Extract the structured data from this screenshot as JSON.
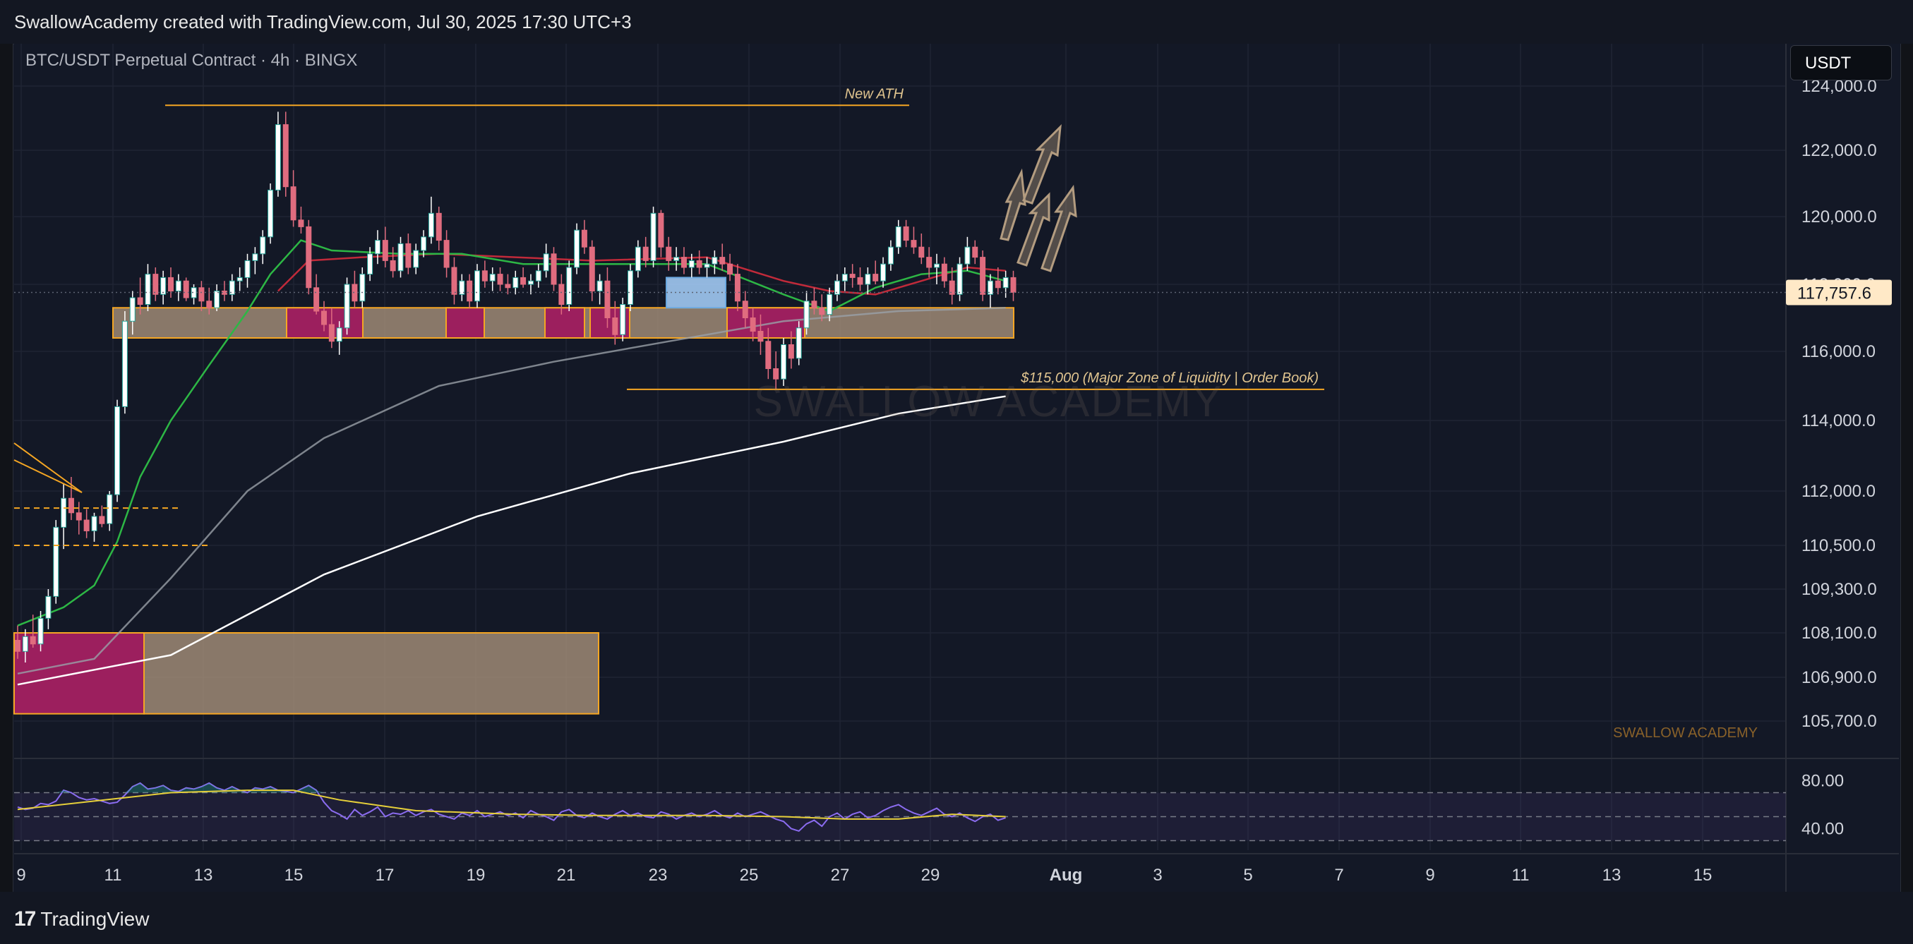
{
  "header": {
    "credit": "SwallowAcademy created with TradingView.com, Jul 30, 2025 17:30 UTC+3",
    "symbol_title": "BTC/USDT Perpetual Contract · 4h · BINGX",
    "currency_button": "USDT"
  },
  "footer": {
    "logo_text": "TradingView",
    "logo_icon": "tradingview-logo-icon"
  },
  "colors": {
    "background": "#131826",
    "up_candle": "#ffffff",
    "down_candle": "#e06c7f",
    "zone_fill": "#a8917a",
    "zone_border": "#f5a623",
    "demand_block": "#9c1f5e",
    "ema_fast": "#2db745",
    "ema_mid": "#c12a3a",
    "ma_100": "#9aa0a8",
    "ma_200": "#ffffff",
    "rsi_line": "#8b6cf0",
    "rsi_signal": "#e6cf3a",
    "price_label_bg": "#ffe9c7"
  },
  "chart_data": {
    "type": "candlestick",
    "symbol": "BTC/USDT Perpetual Contract",
    "timeframe": "4h",
    "exchange": "BINGX",
    "current_price": "117,757.6",
    "y_ticks": [
      "124,000.0",
      "122,000.0",
      "120,000.0",
      "118,000.0",
      "116,000.0",
      "114,000.0",
      "112,000.0",
      "110,500.0",
      "109,300.0",
      "108,100.0",
      "106,900.0",
      "105,700.0"
    ],
    "x_ticks": [
      "9",
      "11",
      "13",
      "15",
      "17",
      "19",
      "21",
      "23",
      "25",
      "27",
      "29",
      "Aug",
      "3",
      "5",
      "7",
      "9",
      "11",
      "13",
      "15"
    ],
    "candles": [
      [
        107900,
        108300,
        107400,
        107600
      ],
      [
        107600,
        108200,
        107300,
        108000
      ],
      [
        108000,
        108600,
        107700,
        107800
      ],
      [
        107800,
        108700,
        107600,
        108500
      ],
      [
        108500,
        109300,
        108200,
        109100
      ],
      [
        109100,
        111200,
        108900,
        111000
      ],
      [
        111000,
        112200,
        110400,
        111800
      ],
      [
        111800,
        112400,
        111200,
        111400
      ],
      [
        111400,
        111700,
        110800,
        111200
      ],
      [
        111200,
        111500,
        110700,
        110900
      ],
      [
        110900,
        111400,
        110600,
        111300
      ],
      [
        111300,
        111600,
        111000,
        111100
      ],
      [
        111100,
        112000,
        110900,
        111900
      ],
      [
        111900,
        114600,
        111700,
        114400
      ],
      [
        114400,
        117200,
        114200,
        116900
      ],
      [
        116900,
        117800,
        116500,
        117600
      ],
      [
        117600,
        118200,
        117100,
        117400
      ],
      [
        117400,
        118600,
        117200,
        118300
      ],
      [
        118300,
        118500,
        117500,
        117700
      ],
      [
        117700,
        118400,
        117400,
        118200
      ],
      [
        118200,
        118500,
        117600,
        117800
      ],
      [
        117800,
        118300,
        117500,
        118100
      ],
      [
        118100,
        118200,
        117500,
        117600
      ],
      [
        117600,
        118000,
        117400,
        117900
      ],
      [
        117900,
        118100,
        117200,
        117500
      ],
      [
        117500,
        117900,
        117100,
        117300
      ],
      [
        117300,
        118000,
        117200,
        117800
      ],
      [
        117800,
        118100,
        117500,
        117700
      ],
      [
        117700,
        118300,
        117500,
        118100
      ],
      [
        118100,
        118500,
        117800,
        118200
      ],
      [
        118200,
        118900,
        117900,
        118700
      ],
      [
        118700,
        119100,
        118300,
        118900
      ],
      [
        118900,
        119600,
        118600,
        119400
      ],
      [
        119400,
        121000,
        119200,
        120800
      ],
      [
        120800,
        123200,
        120600,
        122800
      ],
      [
        122800,
        123200,
        120600,
        120900
      ],
      [
        120900,
        121400,
        119700,
        119900
      ],
      [
        119900,
        120300,
        119500,
        119700
      ],
      [
        119700,
        119900,
        117700,
        117900
      ],
      [
        117900,
        118300,
        117100,
        117200
      ],
      [
        117200,
        117500,
        116600,
        116800
      ],
      [
        116800,
        117300,
        116100,
        116300
      ],
      [
        116300,
        116900,
        115900,
        116700
      ],
      [
        116700,
        118200,
        116500,
        118000
      ],
      [
        118000,
        118400,
        117300,
        117500
      ],
      [
        117500,
        118500,
        117300,
        118300
      ],
      [
        118300,
        119100,
        118100,
        118900
      ],
      [
        118900,
        119600,
        118600,
        119300
      ],
      [
        119300,
        119700,
        118500,
        118700
      ],
      [
        118700,
        119100,
        118200,
        118400
      ],
      [
        118400,
        119400,
        118200,
        119200
      ],
      [
        119200,
        119500,
        118300,
        118500
      ],
      [
        118500,
        119200,
        118300,
        119000
      ],
      [
        119000,
        119600,
        118800,
        119400
      ],
      [
        119400,
        120600,
        119200,
        120100
      ],
      [
        120100,
        120300,
        119000,
        119300
      ],
      [
        119300,
        119600,
        118200,
        118500
      ],
      [
        118500,
        118800,
        117400,
        117700
      ],
      [
        117700,
        118300,
        117500,
        118100
      ],
      [
        118100,
        118300,
        117300,
        117500
      ],
      [
        117500,
        118600,
        117300,
        118400
      ],
      [
        118400,
        118700,
        117900,
        118100
      ],
      [
        118100,
        118500,
        117800,
        118300
      ],
      [
        118300,
        118500,
        117800,
        118000
      ],
      [
        118000,
        118300,
        117700,
        117900
      ],
      [
        117900,
        118400,
        117700,
        118200
      ],
      [
        118200,
        118500,
        117900,
        118000
      ],
      [
        118000,
        118300,
        117700,
        118100
      ],
      [
        118100,
        118600,
        117900,
        118400
      ],
      [
        118400,
        119200,
        118200,
        118900
      ],
      [
        118900,
        119100,
        117800,
        118000
      ],
      [
        118000,
        118300,
        117100,
        117400
      ],
      [
        117400,
        118700,
        117200,
        118500
      ],
      [
        118500,
        119800,
        118300,
        119600
      ],
      [
        119600,
        119900,
        118900,
        119100
      ],
      [
        119100,
        119300,
        117500,
        117800
      ],
      [
        117800,
        118300,
        117400,
        118100
      ],
      [
        118100,
        118500,
        116700,
        117000
      ],
      [
        117000,
        117500,
        116200,
        116500
      ],
      [
        116500,
        117600,
        116300,
        117400
      ],
      [
        117400,
        118600,
        117200,
        118400
      ],
      [
        118400,
        119300,
        118200,
        119100
      ],
      [
        119100,
        119400,
        118500,
        118700
      ],
      [
        118700,
        120300,
        118500,
        120100
      ],
      [
        120100,
        120200,
        118800,
        119100
      ],
      [
        119100,
        119400,
        118400,
        118700
      ],
      [
        118700,
        119100,
        118400,
        118800
      ],
      [
        118800,
        119100,
        118300,
        118500
      ],
      [
        118500,
        118900,
        118200,
        118700
      ],
      [
        118700,
        119000,
        118300,
        118500
      ],
      [
        118500,
        118800,
        118200,
        118600
      ],
      [
        118600,
        119000,
        118300,
        118800
      ],
      [
        118800,
        119200,
        118400,
        118600
      ],
      [
        118600,
        118900,
        118100,
        118300
      ],
      [
        118300,
        118600,
        117200,
        117500
      ],
      [
        117500,
        117800,
        116700,
        117000
      ],
      [
        117000,
        117300,
        116300,
        116600
      ],
      [
        116600,
        117100,
        115900,
        116300
      ],
      [
        116300,
        116700,
        115200,
        115500
      ],
      [
        115500,
        116000,
        114900,
        115200
      ],
      [
        115200,
        116400,
        115000,
        116200
      ],
      [
        116200,
        116600,
        115500,
        115800
      ],
      [
        115800,
        116900,
        115600,
        116700
      ],
      [
        116700,
        117800,
        116500,
        117500
      ],
      [
        117500,
        117900,
        117100,
        117300
      ],
      [
        117300,
        117700,
        116900,
        117100
      ],
      [
        117100,
        117900,
        116900,
        117700
      ],
      [
        117700,
        118300,
        117500,
        118100
      ],
      [
        118100,
        118500,
        117800,
        118300
      ],
      [
        118300,
        118600,
        117900,
        118200
      ],
      [
        118200,
        118500,
        117800,
        118000
      ],
      [
        118000,
        118500,
        117700,
        118300
      ],
      [
        118300,
        118700,
        118000,
        118100
      ],
      [
        118100,
        118800,
        117900,
        118600
      ],
      [
        118600,
        119300,
        118400,
        119100
      ],
      [
        119100,
        119900,
        118900,
        119700
      ],
      [
        119700,
        119900,
        119100,
        119300
      ],
      [
        119300,
        119700,
        118900,
        119100
      ],
      [
        119100,
        119500,
        118600,
        118800
      ],
      [
        118800,
        119100,
        118200,
        118500
      ],
      [
        118500,
        118900,
        118000,
        118600
      ],
      [
        118600,
        118800,
        117900,
        118100
      ],
      [
        118100,
        118500,
        117400,
        117700
      ],
      [
        117700,
        118800,
        117500,
        118600
      ],
      [
        118600,
        119400,
        118400,
        119100
      ],
      [
        119100,
        119300,
        118600,
        118800
      ],
      [
        118800,
        119000,
        117500,
        117700
      ],
      [
        117700,
        118300,
        117300,
        118100
      ],
      [
        118100,
        118500,
        117700,
        117900
      ],
      [
        117900,
        118400,
        117600,
        118200
      ],
      [
        118200,
        118400,
        117500,
        117760
      ]
    ],
    "ema_fast": [
      [
        0,
        108300
      ],
      [
        6,
        108800
      ],
      [
        10,
        109400
      ],
      [
        13,
        110600
      ],
      [
        16,
        112400
      ],
      [
        20,
        114000
      ],
      [
        25,
        115600
      ],
      [
        30,
        117200
      ],
      [
        33,
        118300
      ],
      [
        37,
        119300
      ],
      [
        41,
        119000
      ],
      [
        50,
        118900
      ],
      [
        58,
        118900
      ],
      [
        66,
        118600
      ],
      [
        76,
        118600
      ],
      [
        90,
        118600
      ],
      [
        100,
        117700
      ],
      [
        106,
        117200
      ],
      [
        112,
        117900
      ],
      [
        118,
        118300
      ],
      [
        124,
        118400
      ],
      [
        129,
        118100
      ]
    ],
    "ema_mid": [
      [
        34,
        117800
      ],
      [
        38,
        118700
      ],
      [
        45,
        118800
      ],
      [
        55,
        118900
      ],
      [
        65,
        118800
      ],
      [
        75,
        118700
      ],
      [
        90,
        118800
      ],
      [
        100,
        118100
      ],
      [
        106,
        117800
      ],
      [
        112,
        117700
      ],
      [
        118,
        118100
      ],
      [
        124,
        118500
      ],
      [
        129,
        118400
      ]
    ],
    "ma_100": [
      [
        0,
        107000
      ],
      [
        10,
        107400
      ],
      [
        20,
        109600
      ],
      [
        30,
        112000
      ],
      [
        40,
        113500
      ],
      [
        55,
        115000
      ],
      [
        70,
        115700
      ],
      [
        85,
        116300
      ],
      [
        100,
        116900
      ],
      [
        115,
        117200
      ],
      [
        129,
        117300
      ]
    ],
    "ma_200": [
      [
        0,
        106700
      ],
      [
        20,
        107500
      ],
      [
        40,
        109700
      ],
      [
        60,
        111300
      ],
      [
        80,
        112500
      ],
      [
        100,
        113400
      ],
      [
        115,
        114200
      ],
      [
        129,
        114700
      ]
    ],
    "zones": [
      {
        "name": "consolidation",
        "price_top": 117300,
        "price_bottom": 116400
      },
      {
        "name": "support",
        "price_top": 108100,
        "price_bottom": 105900
      }
    ],
    "levels": [
      {
        "label": "New ATH",
        "price": 123400
      },
      {
        "label": "$115,000 (Major Zone of Liquidity | Order Book)",
        "price": 114900
      }
    ],
    "watermarks": [
      "SWALLOW ACADEMY",
      "SWALLOW ACADEMY"
    ],
    "rsi": {
      "ticks": [
        "80.00",
        "40.00"
      ],
      "upper": 70,
      "lower": 30,
      "values": [
        58,
        56,
        57,
        61,
        60,
        63,
        72,
        70,
        66,
        64,
        65,
        63,
        61,
        62,
        68,
        75,
        78,
        73,
        74,
        76,
        72,
        71,
        74,
        73,
        75,
        78,
        74,
        72,
        75,
        72,
        70,
        74,
        73,
        75,
        72,
        71,
        70,
        73,
        76,
        72,
        62,
        55,
        52,
        48,
        56,
        51,
        54,
        58,
        50,
        53,
        52,
        55,
        51,
        54,
        56,
        52,
        50,
        48,
        53,
        51,
        55,
        50,
        52,
        54,
        51,
        53,
        49,
        55,
        52,
        50,
        47,
        54,
        56,
        51,
        49,
        53,
        50,
        48,
        52,
        55,
        51,
        53,
        50,
        49,
        54,
        52,
        48,
        51,
        53,
        50,
        52,
        55,
        51,
        49,
        53,
        50,
        52,
        54,
        51,
        48,
        46,
        40,
        38,
        44,
        47,
        42,
        50,
        53,
        48,
        52,
        54,
        49,
        51,
        55,
        58,
        60,
        56,
        53,
        51,
        54,
        57,
        52,
        50,
        53,
        49,
        46,
        50,
        52,
        47,
        49
      ],
      "signal": [
        [
          0,
          56
        ],
        [
          10,
          63
        ],
        [
          20,
          70
        ],
        [
          30,
          72
        ],
        [
          36,
          72
        ],
        [
          42,
          64
        ],
        [
          52,
          55
        ],
        [
          65,
          52
        ],
        [
          75,
          51
        ],
        [
          90,
          51
        ],
        [
          100,
          50
        ],
        [
          108,
          48
        ],
        [
          115,
          48
        ],
        [
          122,
          52
        ],
        [
          129,
          50
        ]
      ]
    }
  }
}
